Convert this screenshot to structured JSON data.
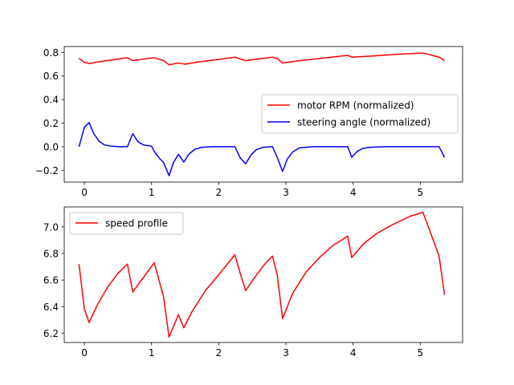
{
  "chart_data": [
    {
      "type": "line",
      "xlim": [
        -0.3,
        5.63
      ],
      "ylim": [
        -0.3,
        0.85
      ],
      "xticks": [
        0,
        1,
        2,
        3,
        4,
        5
      ],
      "yticks": [
        -0.2,
        0.0,
        0.2,
        0.4,
        0.6,
        0.8
      ],
      "xtick_labels": [
        "0",
        "1",
        "2",
        "3",
        "4",
        "5"
      ],
      "ytick_labels": [
        "−0.2",
        "0.0",
        "0.2",
        "0.4",
        "0.6",
        "0.8"
      ],
      "legend_position": "center-right",
      "series": [
        {
          "name": "motor RPM (normalized)",
          "color": "#ff0000",
          "x": [
            -0.08,
            0.0,
            0.08,
            0.2,
            0.4,
            0.64,
            0.72,
            0.9,
            1.04,
            1.18,
            1.26,
            1.4,
            1.5,
            1.7,
            2.0,
            2.24,
            2.4,
            2.6,
            2.8,
            2.88,
            2.95,
            3.2,
            3.6,
            3.92,
            3.98,
            4.3,
            4.7,
            5.04,
            5.28,
            5.36
          ],
          "values": [
            0.75,
            0.715,
            0.705,
            0.72,
            0.735,
            0.755,
            0.73,
            0.745,
            0.755,
            0.73,
            0.695,
            0.71,
            0.7,
            0.72,
            0.74,
            0.76,
            0.73,
            0.745,
            0.76,
            0.745,
            0.71,
            0.73,
            0.755,
            0.775,
            0.76,
            0.77,
            0.785,
            0.795,
            0.76,
            0.73
          ]
        },
        {
          "name": "steering angle (normalized)",
          "color": "#0000ff",
          "x": [
            -0.08,
            0.0,
            0.07,
            0.14,
            0.22,
            0.3,
            0.4,
            0.5,
            0.64,
            0.72,
            0.8,
            0.88,
            1.0,
            1.04,
            1.12,
            1.18,
            1.26,
            1.33,
            1.4,
            1.48,
            1.56,
            1.65,
            1.75,
            1.9,
            2.1,
            2.24,
            2.32,
            2.4,
            2.48,
            2.56,
            2.66,
            2.8,
            2.87,
            2.95,
            3.02,
            3.1,
            3.2,
            3.4,
            3.7,
            3.92,
            3.98,
            4.06,
            4.14,
            4.25,
            4.5,
            4.8,
            5.04,
            5.28,
            5.36
          ],
          "values": [
            0.0,
            0.165,
            0.205,
            0.11,
            0.045,
            0.015,
            0.005,
            0.0,
            0.0,
            0.11,
            0.04,
            0.015,
            0.005,
            -0.04,
            -0.1,
            -0.135,
            -0.245,
            -0.13,
            -0.065,
            -0.13,
            -0.06,
            -0.02,
            -0.005,
            0.0,
            0.0,
            0.0,
            -0.095,
            -0.145,
            -0.07,
            -0.025,
            -0.005,
            0.0,
            -0.09,
            -0.21,
            -0.105,
            -0.045,
            -0.01,
            0.0,
            0.0,
            0.0,
            -0.09,
            -0.04,
            -0.015,
            -0.005,
            0.0,
            0.0,
            0.0,
            0.0,
            -0.09
          ]
        }
      ]
    },
    {
      "type": "line",
      "xlim": [
        -0.3,
        5.63
      ],
      "ylim": [
        6.13,
        7.15
      ],
      "xticks": [
        0,
        1,
        2,
        3,
        4,
        5
      ],
      "yticks": [
        6.2,
        6.4,
        6.6,
        6.8,
        7.0
      ],
      "xtick_labels": [
        "0",
        "1",
        "2",
        "3",
        "4",
        "5"
      ],
      "ytick_labels": [
        "6.2",
        "6.4",
        "6.6",
        "6.8",
        "7.0"
      ],
      "legend_position": "upper-left",
      "series": [
        {
          "name": "speed profile",
          "color": "#ff0000",
          "x": [
            -0.08,
            0.0,
            0.07,
            0.2,
            0.35,
            0.5,
            0.64,
            0.72,
            0.85,
            1.04,
            1.18,
            1.26,
            1.4,
            1.48,
            1.6,
            1.8,
            2.0,
            2.24,
            2.32,
            2.4,
            2.55,
            2.7,
            2.8,
            2.87,
            2.95,
            3.1,
            3.3,
            3.5,
            3.7,
            3.92,
            3.98,
            4.15,
            4.35,
            4.6,
            4.85,
            5.04,
            5.28,
            5.36
          ],
          "values": [
            6.72,
            6.38,
            6.28,
            6.42,
            6.55,
            6.65,
            6.72,
            6.51,
            6.6,
            6.73,
            6.47,
            6.17,
            6.34,
            6.24,
            6.36,
            6.52,
            6.64,
            6.79,
            6.65,
            6.52,
            6.63,
            6.73,
            6.78,
            6.64,
            6.31,
            6.5,
            6.66,
            6.77,
            6.86,
            6.93,
            6.77,
            6.87,
            6.95,
            7.02,
            7.08,
            7.11,
            6.78,
            6.49
          ]
        }
      ]
    }
  ]
}
